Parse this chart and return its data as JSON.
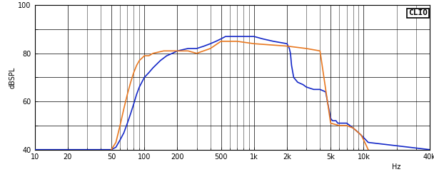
{
  "title": "CLIO",
  "ylabel": "dBSPL",
  "xlabel_unit": "Hz",
  "xmin": 10,
  "xmax": 40000,
  "ymin": 40,
  "ymax": 100,
  "yticks": [
    40,
    50,
    60,
    70,
    80,
    90,
    100
  ],
  "xticks_major": [
    10,
    20,
    50,
    100,
    200,
    500,
    1000,
    2000,
    5000,
    10000,
    40000
  ],
  "xtick_labels": [
    "10",
    "20",
    "50",
    "100",
    "200",
    "500",
    "1k",
    "2k",
    "5k",
    "10k",
    "40k"
  ],
  "bg_color": "#ffffff",
  "grid_color": "#000000",
  "line_blue": "#1428c8",
  "line_orange": "#e87820",
  "blue_x": [
    10,
    40,
    47,
    50,
    55,
    60,
    65,
    70,
    75,
    80,
    85,
    90,
    100,
    110,
    120,
    140,
    160,
    180,
    200,
    250,
    300,
    350,
    400,
    450,
    500,
    550,
    600,
    650,
    700,
    750,
    800,
    900,
    1000,
    1200,
    1500,
    2000,
    2050,
    2100,
    2150,
    2200,
    2300,
    2500,
    2800,
    3000,
    3500,
    4000,
    4500,
    5000,
    5200,
    5400,
    5600,
    5800,
    6000,
    6200,
    6500,
    7000,
    7500,
    8000,
    8500,
    9000,
    9500,
    10000,
    10500,
    11000,
    40000
  ],
  "blue_y": [
    40,
    40,
    40,
    40,
    41,
    44,
    47,
    51,
    55,
    59,
    63,
    66,
    70,
    72,
    74,
    77,
    79,
    80,
    81,
    82,
    82,
    83,
    84,
    85,
    86,
    87,
    87,
    87,
    87,
    87,
    87,
    87,
    87,
    86,
    85,
    84,
    83,
    82,
    80,
    75,
    70,
    68,
    67,
    66,
    65,
    65,
    64,
    53,
    52,
    52,
    52,
    51,
    51,
    51,
    51,
    51,
    50,
    49,
    48,
    47,
    46,
    45,
    44,
    43,
    40
  ],
  "orange_x": [
    50,
    55,
    60,
    65,
    70,
    75,
    80,
    85,
    90,
    95,
    100,
    110,
    120,
    150,
    200,
    250,
    300,
    400,
    500,
    700,
    1000,
    2000,
    3000,
    4000,
    5000,
    6000,
    7000,
    8000,
    9000,
    9500,
    10000,
    10500,
    11000
  ],
  "orange_y": [
    40,
    43,
    50,
    57,
    63,
    68,
    72,
    75,
    77,
    78,
    79,
    79,
    80,
    81,
    81,
    81,
    80,
    82,
    85,
    85,
    84,
    83,
    82,
    81,
    51,
    50,
    50,
    49,
    47,
    46,
    44,
    42,
    40
  ]
}
